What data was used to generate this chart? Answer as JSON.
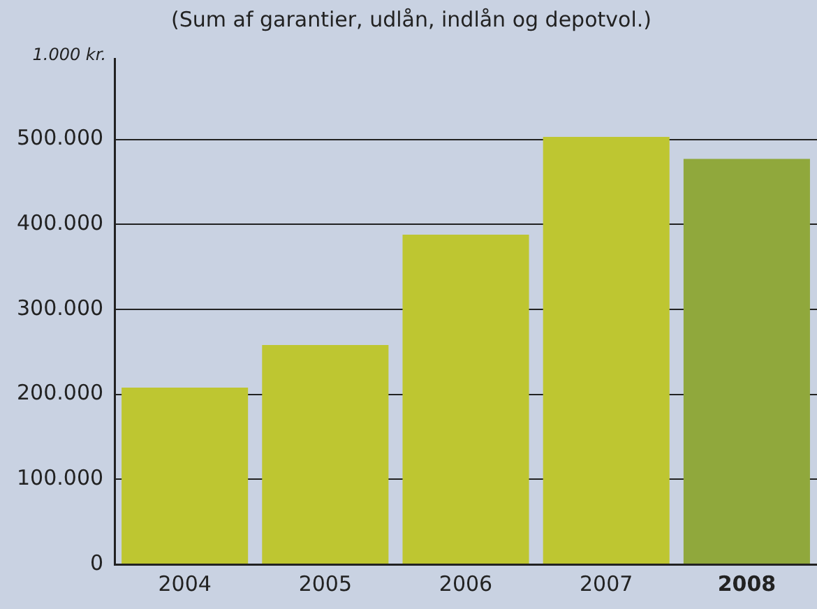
{
  "chart_data": {
    "type": "bar",
    "title": "(Sum af garantier, udlån, indlån og depotvol.)",
    "ylabel": "1.000 kr.",
    "categories": [
      "2004",
      "2005",
      "2006",
      "2007",
      "2008"
    ],
    "values": [
      208000,
      258000,
      388000,
      503000,
      477000
    ],
    "colors": [
      "#bec631",
      "#bec631",
      "#bec631",
      "#bec631",
      "#90a83c"
    ],
    "ylim": [
      0,
      595000
    ],
    "yticks": [
      0,
      {
        "value": 100000,
        "label": "100.000"
      },
      {
        "value": 200000,
        "label": "200.000"
      },
      {
        "value": 300000,
        "label": "300.000"
      },
      {
        "value": 400000,
        "label": "400.000"
      },
      {
        "value": 500000,
        "label": "500.000"
      }
    ],
    "grid": "y",
    "legend": false
  }
}
